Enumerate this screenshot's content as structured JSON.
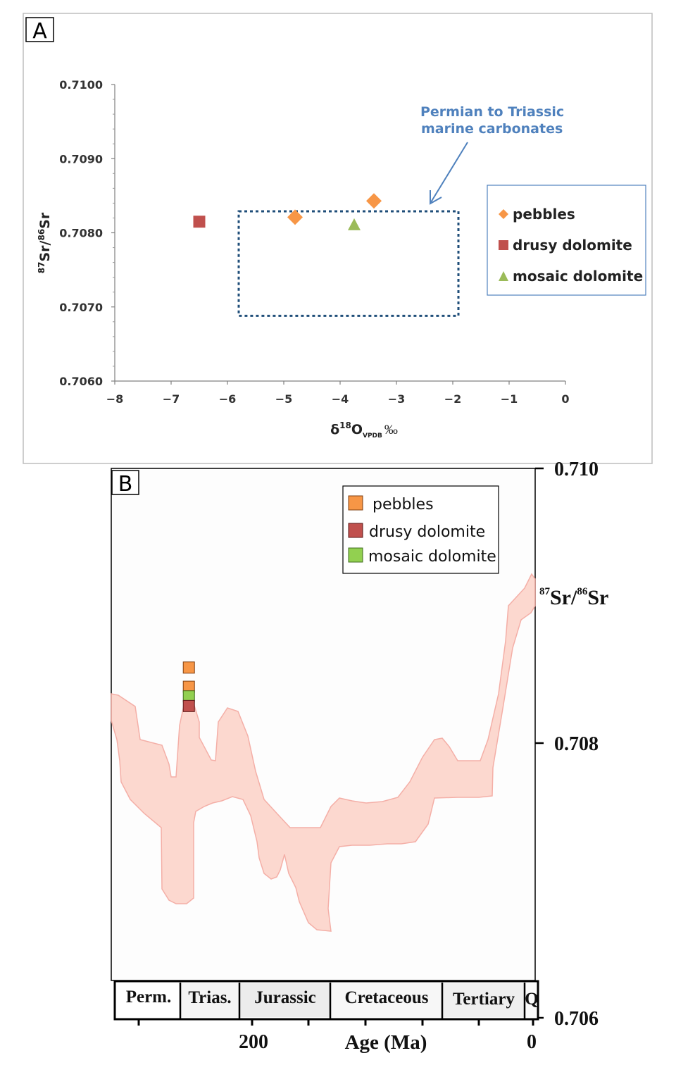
{
  "panel_a": {
    "label": "A",
    "annotation_line1": "Permian to Triassic",
    "annotation_line2": "marine carbonates",
    "ylabel_pre": "87",
    "ylabel_mid": "Sr/",
    "ylabel_sup2": "86",
    "ylabel_post": "Sr",
    "xlabel_delta": "δ",
    "xlabel_sup": "18",
    "xlabel_o": "O",
    "xlabel_sub": "VPDB",
    "xlabel_unit": "‰",
    "legend": [
      "pebbles",
      "drusy dolomite",
      "mosaic dolomite"
    ]
  },
  "panel_b": {
    "label": "B",
    "right_axis_pre": "87",
    "right_axis_mid": "Sr/",
    "right_axis_sup2": "86",
    "right_axis_post": "Sr",
    "legend": [
      "pebbles",
      "drusy dolomite",
      "mosaic dolomite"
    ],
    "periods": [
      "Perm.",
      "Trias.",
      "Jurassic",
      "Cretaceous",
      "Tertiary",
      "Q"
    ],
    "age_label": "Age (Ma)",
    "age_tick_200": "200",
    "age_tick_0": "0"
  },
  "colors": {
    "pebbles_a": "#F79646",
    "drusy_a": "#C0504D",
    "mosaic_a": "#9BBB59",
    "pebbles_b": "#F79646",
    "drusy_b": "#C0504D",
    "mosaic_b": "#92D050",
    "annotation": "#4F81BD",
    "dotted_box": "#1F4E79",
    "band_fill": "#FCD5CC",
    "band_stroke": "#F4A9A0"
  },
  "chart_data": [
    {
      "type": "scatter",
      "title": "",
      "xlabel": "δ18O VPDB ‰",
      "ylabel": "87Sr/86Sr",
      "xlim": [
        -8,
        0
      ],
      "ylim": [
        0.706,
        0.71
      ],
      "xticks": [
        -8,
        -7,
        -6,
        -5,
        -4,
        -3,
        -2,
        -1,
        0
      ],
      "xtick_labels": [
        "−8",
        "−7",
        "−6",
        "−5",
        "−4",
        "−3",
        "−2",
        "−1",
        "0"
      ],
      "yticks": [
        0.706,
        0.707,
        0.708,
        0.709,
        0.71
      ],
      "ytick_labels": [
        "0.7060",
        "0.7070",
        "0.7080",
        "0.7090",
        "0.7100"
      ],
      "legend_position": "right",
      "series": [
        {
          "name": "pebbles",
          "marker": "diamond",
          "points": [
            {
              "x": -4.8,
              "y": 0.70821
            },
            {
              "x": -3.4,
              "y": 0.70843
            }
          ]
        },
        {
          "name": "drusy dolomite",
          "marker": "square",
          "points": [
            {
              "x": -6.5,
              "y": 0.70815
            }
          ]
        },
        {
          "name": "mosaic dolomite",
          "marker": "triangle",
          "points": [
            {
              "x": -3.75,
              "y": 0.70811
            }
          ]
        }
      ],
      "region": {
        "label": "Permian to Triassic marine carbonates",
        "x_range": [
          -5.8,
          -1.9
        ],
        "y_range": [
          0.70688,
          0.70829
        ]
      }
    },
    {
      "type": "area",
      "title": "",
      "xlabel": "Age (Ma)",
      "ylabel": "87Sr/86Sr",
      "ylim": [
        0.706,
        0.71
      ],
      "yticks": [
        0.706,
        0.708,
        0.71
      ],
      "ytick_labels": [
        "0.706",
        "0.708",
        "0.710"
      ],
      "xticks_labeled": [
        "200",
        "0"
      ],
      "legend_position": "top-right",
      "periods": [
        "Perm.",
        "Trias.",
        "Jurassic",
        "Cretaceous",
        "Tertiary",
        "Q"
      ],
      "series": [
        {
          "name": "pebbles",
          "marker": "square",
          "points": [
            {
              "age": 245,
              "y": 0.70855
            },
            {
              "age": 245,
              "y": 0.70841
            }
          ]
        },
        {
          "name": "mosaic dolomite",
          "marker": "square",
          "points": [
            {
              "age": 245,
              "y": 0.70834
            }
          ]
        },
        {
          "name": "drusy dolomite",
          "marker": "square",
          "points": [
            {
              "age": 245,
              "y": 0.70827
            }
          ]
        }
      ]
    }
  ]
}
